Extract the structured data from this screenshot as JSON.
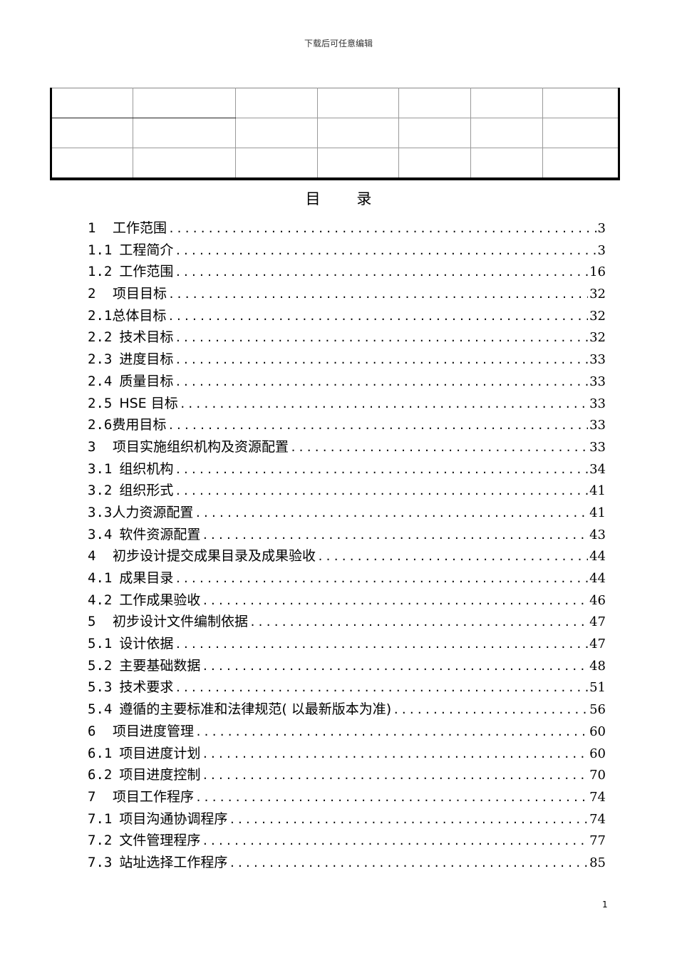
{
  "header": {
    "text": "下载后可任意编辑"
  },
  "toc": {
    "title": "目 录",
    "entries": [
      {
        "num": "1",
        "label": "工作范围",
        "page": "3"
      },
      {
        "num": "1.1",
        "label": "工程简介",
        "page": "3"
      },
      {
        "num": "1.2",
        "label": "工作范围",
        "page": "16"
      },
      {
        "num": "2",
        "label": "项目目标",
        "page": "32"
      },
      {
        "num": "2.1",
        "label": "总体目标",
        "page": "32"
      },
      {
        "num": "2.2",
        "label": "技术目标",
        "page": "32"
      },
      {
        "num": "2.3",
        "label": "进度目标",
        "page": "33"
      },
      {
        "num": "2.4",
        "label": "质量目标",
        "page": "33"
      },
      {
        "num": "2.5",
        "label": "HSE 目标",
        "page": "33"
      },
      {
        "num": "2.6",
        "label": "费用目标",
        "page": "33"
      },
      {
        "num": "3",
        "label": "项目实施组织机构及资源配置",
        "page": "33"
      },
      {
        "num": "3.1",
        "label": "组织机构",
        "page": "34"
      },
      {
        "num": "3.2",
        "label": "组织形式",
        "page": "41"
      },
      {
        "num": "3.3",
        "label": "人力资源配置",
        "page": "41"
      },
      {
        "num": "3.4",
        "label": "软件资源配置",
        "page": "43"
      },
      {
        "num": "4",
        "label": "初步设计提交成果目录及成果验收",
        "page": "44"
      },
      {
        "num": "4.1",
        "label": "成果目录",
        "page": "44"
      },
      {
        "num": "4.2",
        "label": "工作成果验收",
        "page": "46"
      },
      {
        "num": "5",
        "label": "初步设计文件编制依据",
        "page": "47"
      },
      {
        "num": "5.1",
        "label": "设计依据",
        "page": "47"
      },
      {
        "num": "5.2",
        "label": "主要基础数据",
        "page": "48"
      },
      {
        "num": "5.3",
        "label": "技术要求",
        "page": "51"
      },
      {
        "num": "5.4",
        "label": "遵循的主要标准和法律规范( 以最新版本为准)",
        "page": "56"
      },
      {
        "num": "6",
        "label": "项目进度管理",
        "page": "60"
      },
      {
        "num": "6.1",
        "label": "项目进度计划",
        "page": "60"
      },
      {
        "num": "6.2",
        "label": "项目进度控制",
        "page": "70"
      },
      {
        "num": "7",
        "label": "项目工作程序",
        "page": "74"
      },
      {
        "num": "7.1",
        "label": "项目沟通协调程序",
        "page": "74"
      },
      {
        "num": "7.2",
        "label": "文件管理程序",
        "page": "77"
      },
      {
        "num": "7.3",
        "label": "站址选择工作程序",
        "page": "85"
      }
    ]
  },
  "footer": {
    "page_number": "1"
  }
}
